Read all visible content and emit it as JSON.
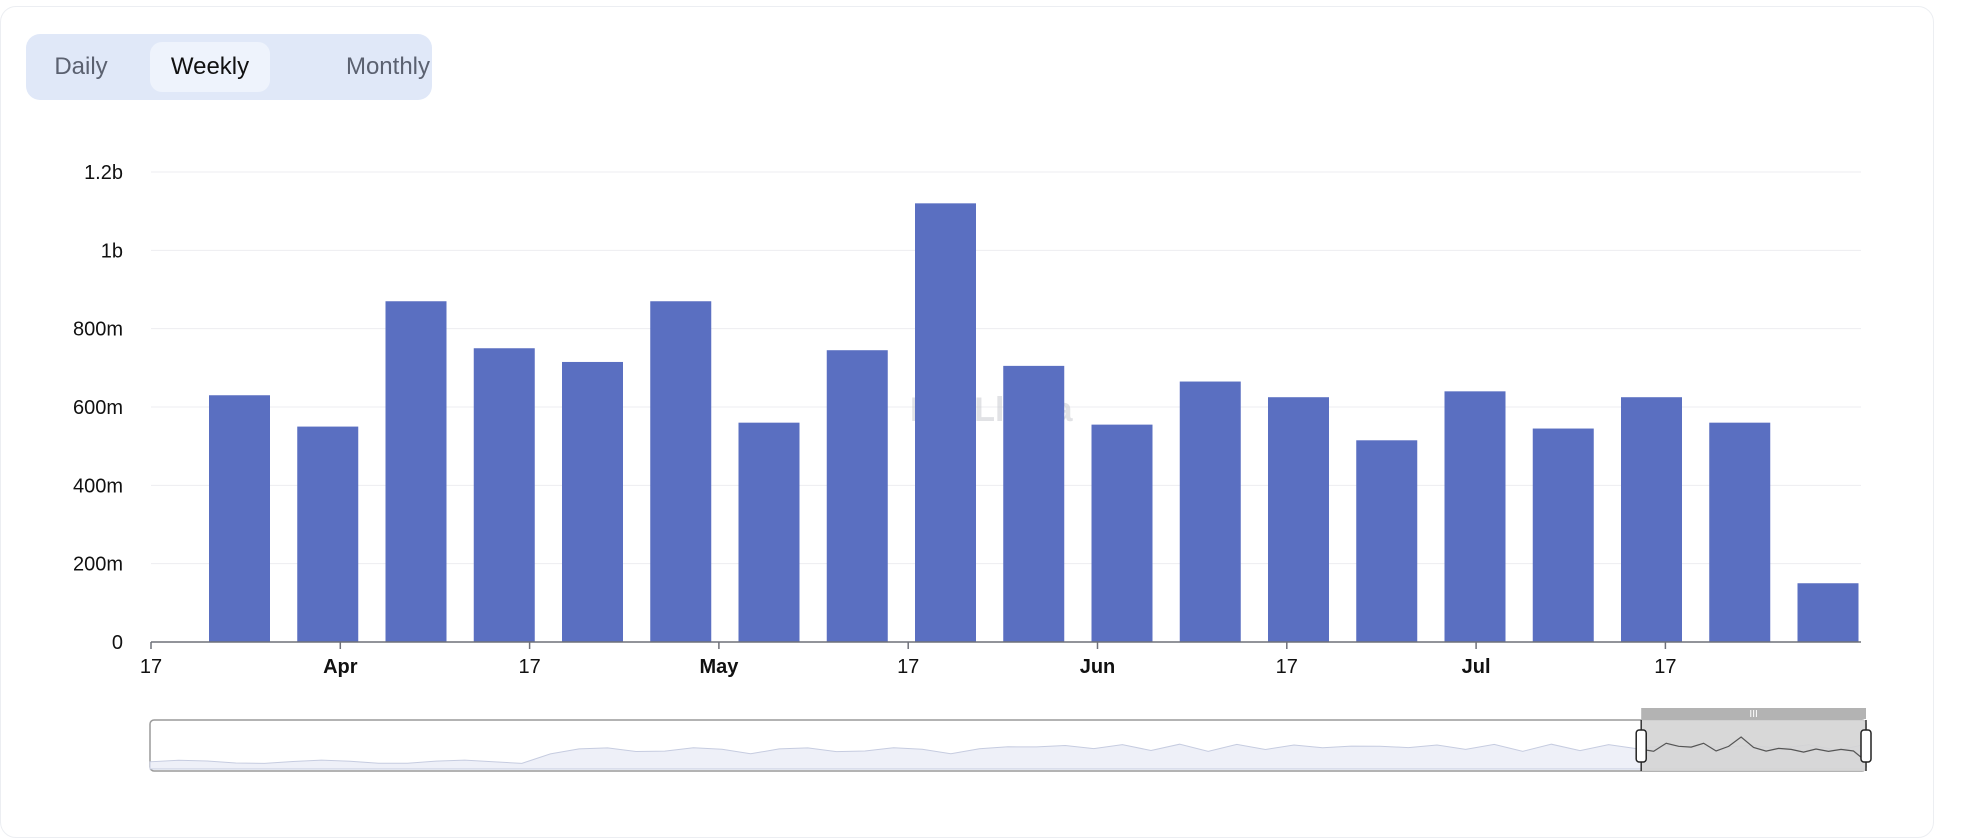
{
  "period_toggle": {
    "options": [
      "Daily",
      "Weekly",
      "Monthly"
    ],
    "selected": "Weekly"
  },
  "watermark": "DefiLlama",
  "colors": {
    "bar": "#5a6fc1",
    "grid": "#ededf0",
    "axis": "#6e7079",
    "toggle_bg": "#e0e8f8",
    "brush_fill": "#d4d4d4",
    "brush_handle_bar": "#b3b3b3",
    "overview_fill": "#eef0f8"
  },
  "chart_data": {
    "type": "bar",
    "title": "",
    "xlabel": "",
    "ylabel": "",
    "ylim": [
      0,
      1200000000
    ],
    "y_ticks": [
      "0",
      "200m",
      "400m",
      "600m",
      "800m",
      "1b",
      "1.2b"
    ],
    "x_ticks": [
      {
        "label": "17",
        "bold": false
      },
      {
        "label": "Apr",
        "bold": true
      },
      {
        "label": "17",
        "bold": false
      },
      {
        "label": "May",
        "bold": true
      },
      {
        "label": "17",
        "bold": false
      },
      {
        "label": "Jun",
        "bold": true
      },
      {
        "label": "17",
        "bold": false
      },
      {
        "label": "Jul",
        "bold": true
      },
      {
        "label": "17",
        "bold": false
      }
    ],
    "values": [
      630000000,
      550000000,
      870000000,
      750000000,
      715000000,
      870000000,
      560000000,
      745000000,
      1120000000,
      705000000,
      555000000,
      665000000,
      625000000,
      515000000,
      640000000,
      545000000,
      625000000,
      560000000,
      150000000
    ],
    "grid": true,
    "legend": "none",
    "overview_brush": {
      "selected_range_fraction": [
        0.869,
        1.0
      ],
      "handle_grip": "III"
    }
  }
}
